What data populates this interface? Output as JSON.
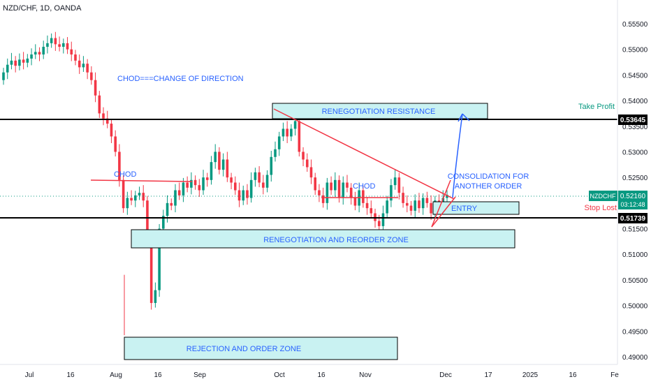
{
  "header": {
    "title": "NZD/CHF, 1D, OANDA"
  },
  "colors": {
    "up": "#089981",
    "down": "#f23645",
    "zone_fill": "#c9f2f2",
    "zone_stroke": "#000000",
    "annotation_blue": "#2962ff",
    "annotation_red": "#f23645",
    "take_profit": "#089981",
    "line_black": "#000000",
    "current_price": "#089981",
    "countdown": "#089981"
  },
  "chart_data": {
    "type": "candlestick",
    "symbol": "NZD/CHF",
    "timeframe": "1D",
    "source": "OANDA",
    "ylim": [
      0.4885,
      0.5575
    ],
    "y_ticks": [
      "0.55500",
      "0.55000",
      "0.54500",
      "0.54000",
      "0.53500",
      "0.53000",
      "0.52500",
      "0.52000",
      "0.51500",
      "0.51000",
      "0.50500",
      "0.50000",
      "0.49500",
      "0.49000"
    ],
    "x_ticks": [
      "Jul",
      "16",
      "Aug",
      "16",
      "Sep",
      "Oct",
      "16",
      "Nov",
      "Dec",
      "17",
      "2025",
      "16",
      "Fe"
    ],
    "candle_closes": [
      0.5455,
      0.547,
      0.5478,
      0.5468,
      0.548,
      0.5474,
      0.5482,
      0.549,
      0.5495,
      0.549,
      0.5505,
      0.5512,
      0.5522,
      0.551,
      0.5505,
      0.5512,
      0.55,
      0.549,
      0.5478,
      0.5465,
      0.5472,
      0.5455,
      0.544,
      0.541,
      0.5375,
      0.5365,
      0.5355,
      0.533,
      0.53,
      0.5245,
      0.519,
      0.521,
      0.5205,
      0.5215,
      0.522,
      0.5205,
      0.513,
      0.5005,
      0.503,
      0.515,
      0.5175,
      0.52,
      0.5195,
      0.5225,
      0.5215,
      0.524,
      0.523,
      0.5245,
      0.5235,
      0.5225,
      0.525,
      0.5245,
      0.528,
      0.53,
      0.5265,
      0.5285,
      0.525,
      0.524,
      0.5225,
      0.5205,
      0.5225,
      0.521,
      0.5245,
      0.526,
      0.524,
      0.523,
      0.5255,
      0.529,
      0.5305,
      0.533,
      0.5345,
      0.533,
      0.5345,
      0.536,
      0.53,
      0.5285,
      0.527,
      0.525,
      0.5225,
      0.5215,
      0.52,
      0.524,
      0.5225,
      0.5245,
      0.521,
      0.524,
      0.523,
      0.521,
      0.5195,
      0.5225,
      0.52,
      0.519,
      0.518,
      0.5165,
      0.5155,
      0.518,
      0.5205,
      0.5235,
      0.525,
      0.522,
      0.52,
      0.5195,
      0.5185,
      0.5205,
      0.519,
      0.521,
      0.52,
      0.518,
      0.5205,
      0.5195,
      0.521,
      0.5216
    ],
    "horizontal_levels": [
      {
        "label": "Take Profit",
        "price": "0.53645"
      },
      {
        "label": "Stop Lost",
        "price": "0.51739"
      }
    ],
    "current_price": {
      "symbol": "NZDCHF",
      "price": "0.52160",
      "countdown": "03:12:48"
    },
    "zones": [
      {
        "label": "RENEGOTIATION RESISTANCE",
        "from": 0.5365,
        "to": 0.5395
      },
      {
        "label": "RENEGOTIATION AND REORDER ZONE",
        "from": 0.5128,
        "to": 0.5163
      },
      {
        "label": "REJECTION AND ORDER ZONE",
        "from": 0.4888,
        "to": 0.4932
      },
      {
        "label": "ENTRY",
        "from": 0.5176,
        "to": 0.52
      }
    ],
    "annotations": [
      "CHOD===CHANGE OF DIRECTION",
      "CHOD",
      "CHOD",
      "CONSOLIDATION FOR",
      "ANOTHER ORDER"
    ]
  }
}
